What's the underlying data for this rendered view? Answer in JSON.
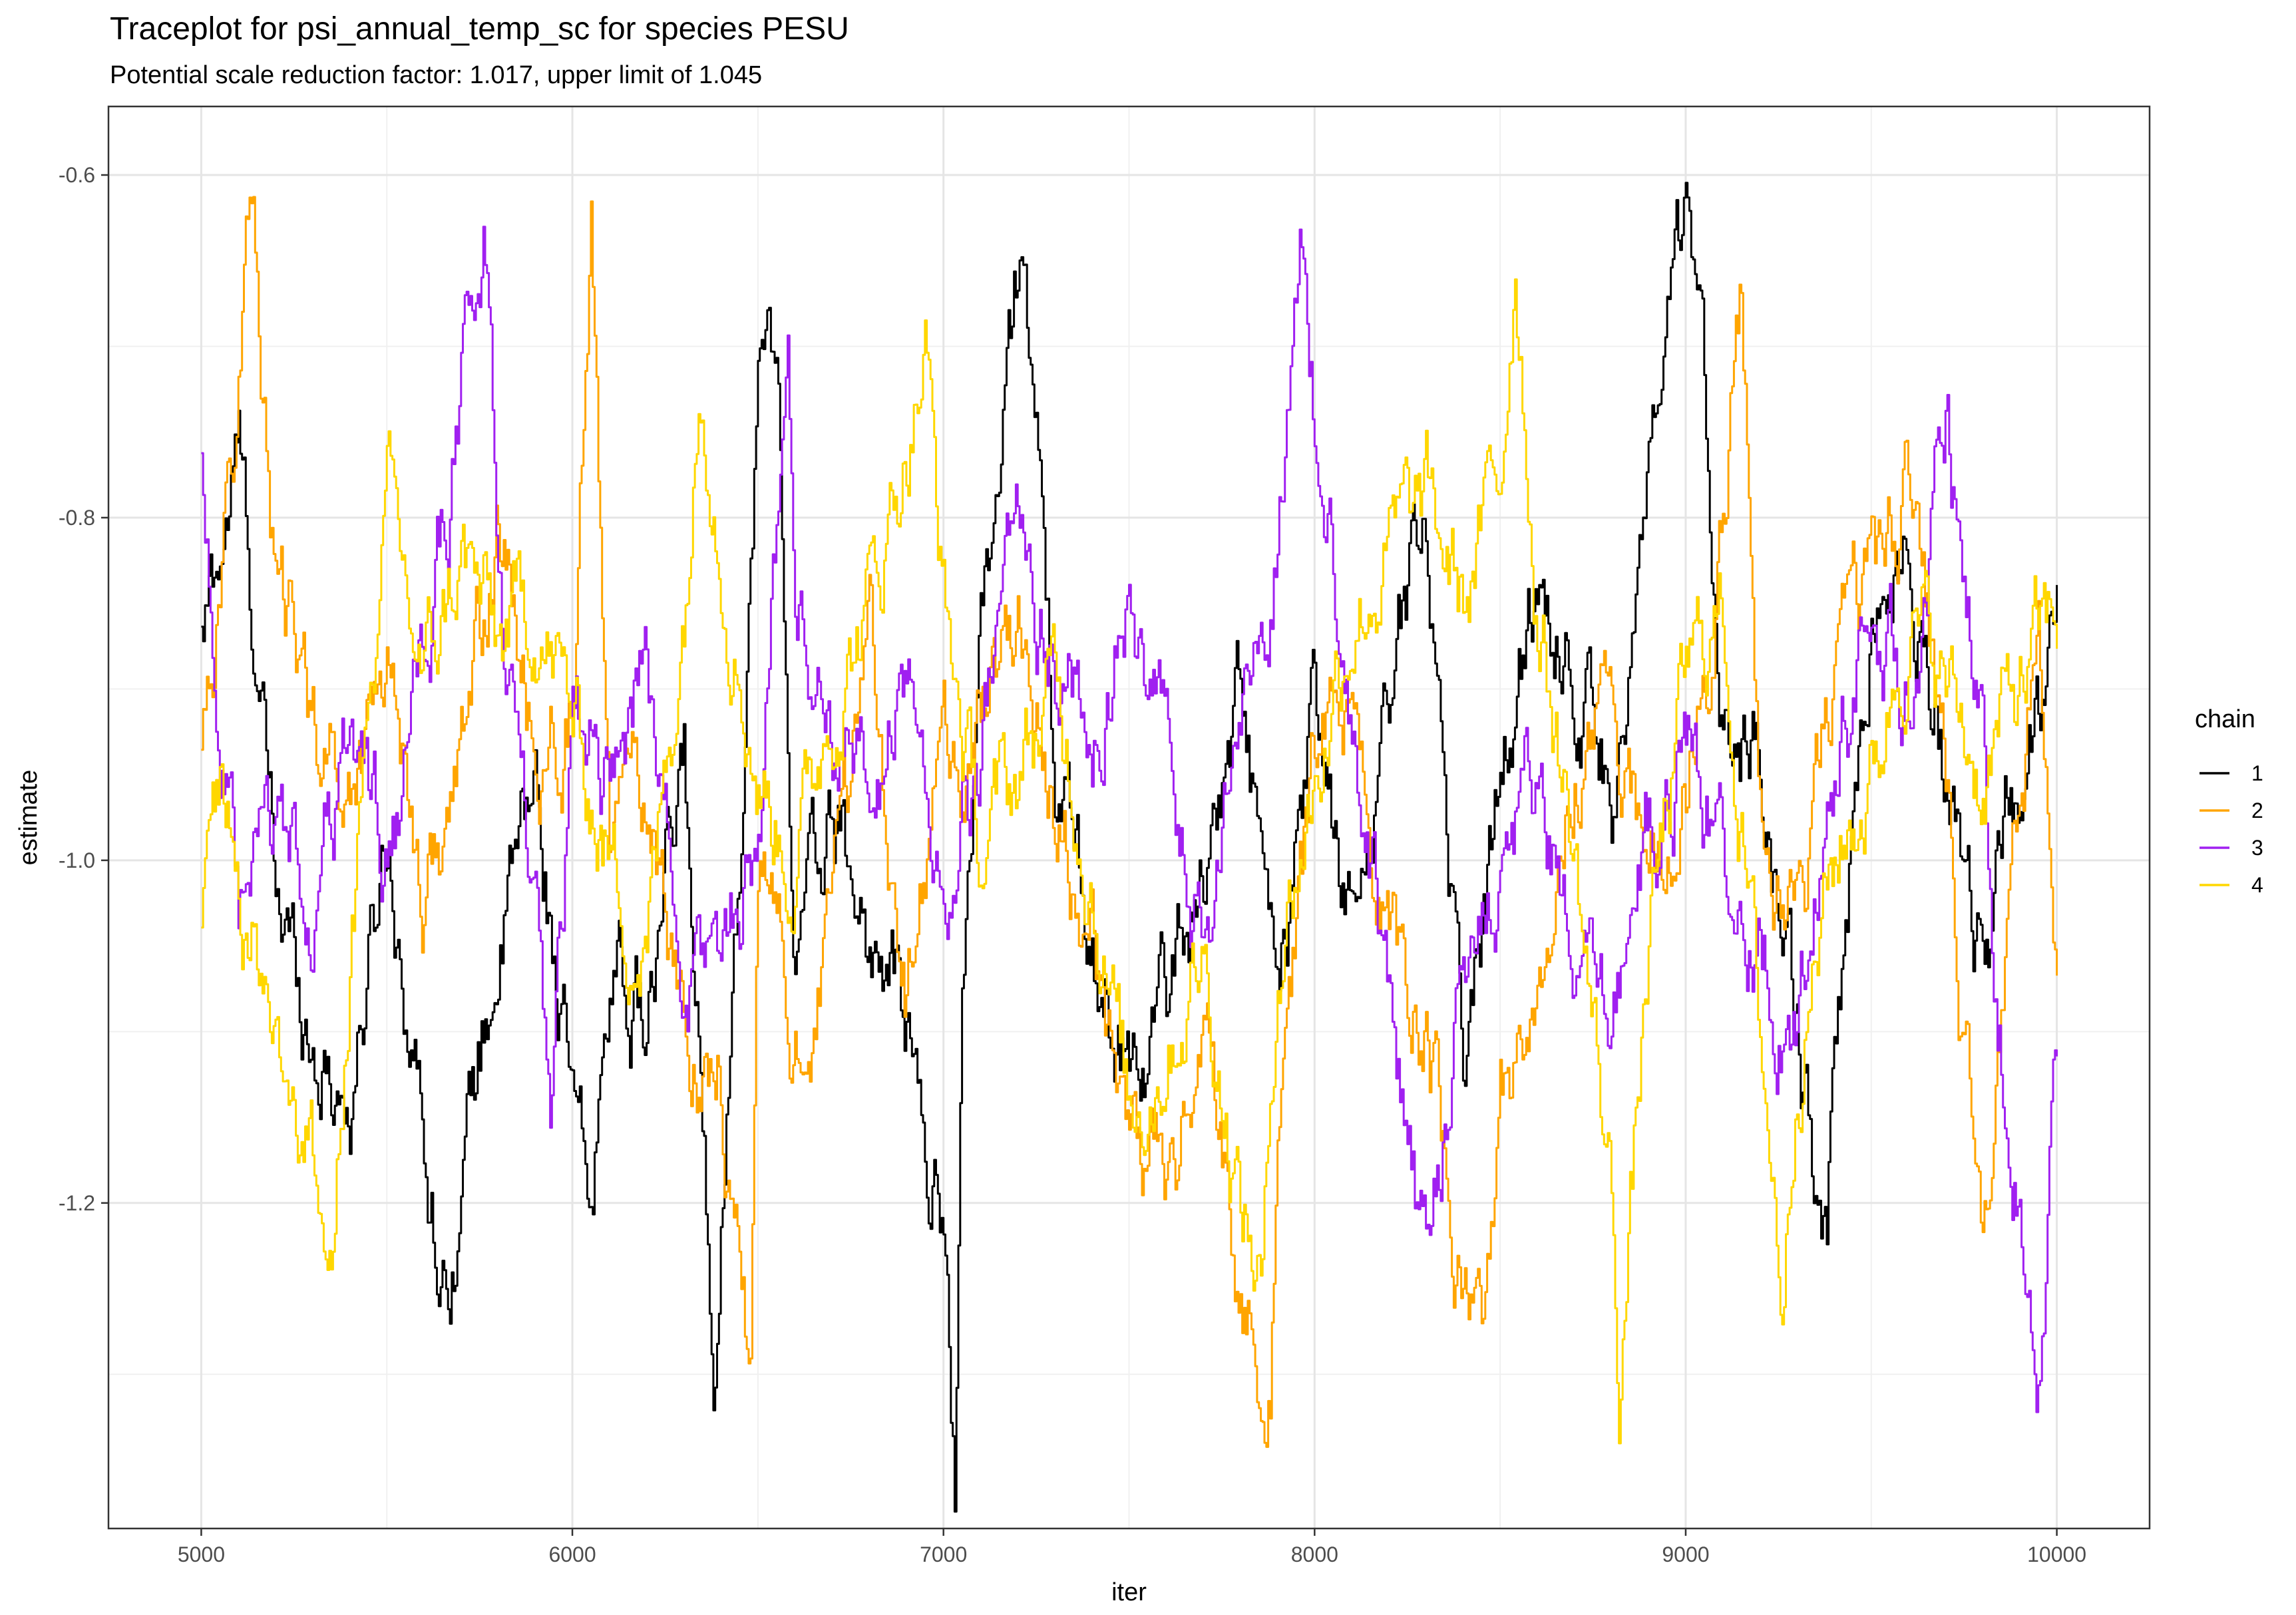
{
  "chart_data": {
    "type": "line",
    "title": "Traceplot for psi_annual_temp_sc for species PESU",
    "subtitle": "Potential scale reduction factor: 1.017, upper limit of 1.045",
    "xlabel": "iter",
    "ylabel": "estimate",
    "xlim": [
      4750,
      10250
    ],
    "ylim": [
      -1.39,
      -0.56
    ],
    "x_ticks": [
      5000,
      6000,
      7000,
      8000,
      9000,
      10000
    ],
    "x_tick_labels": [
      "5000",
      "6000",
      "7000",
      "8000",
      "9000",
      "10000"
    ],
    "y_ticks": [
      -1.2,
      -1.0,
      -0.8,
      -0.6
    ],
    "y_tick_labels": [
      "-1.2",
      "-1.0",
      "-0.8",
      "-0.6"
    ],
    "grid": true,
    "legend": {
      "title": "chain",
      "position": "right"
    },
    "series": [
      {
        "name": "1",
        "color": "#000000",
        "x": [
          5000,
          5100,
          5200,
          5300,
          5400,
          5500,
          5600,
          5650,
          5700,
          5800,
          5900,
          6000,
          6050,
          6100,
          6200,
          6300,
          6380,
          6450,
          6500,
          6550,
          6600,
          6700,
          6800,
          6900,
          6950,
          7000,
          7030,
          7050,
          7100,
          7150,
          7200,
          7220,
          7300,
          7400,
          7500,
          7600,
          7700,
          7800,
          7900,
          8000,
          8100,
          8200,
          8300,
          8400,
          8500,
          8600,
          8700,
          8800,
          8900,
          8980,
          9000,
          9050,
          9100,
          9200,
          9300,
          9380,
          9400,
          9500,
          9600,
          9700,
          9800,
          9900,
          10000
        ],
        "values": [
          -0.88,
          -0.76,
          -1.02,
          -1.1,
          -1.14,
          -0.98,
          -1.16,
          -1.24,
          -1.18,
          -1.05,
          -0.96,
          -1.15,
          -1.22,
          -1.05,
          -1.1,
          -0.95,
          -1.28,
          -0.98,
          -0.72,
          -0.7,
          -1.05,
          -0.98,
          -1.05,
          -1.1,
          -1.18,
          -1.2,
          -1.35,
          -1.1,
          -0.85,
          -0.78,
          -0.66,
          -0.63,
          -0.95,
          -1.05,
          -1.12,
          -1.08,
          -1.0,
          -0.9,
          -1.1,
          -0.92,
          -1.05,
          -0.9,
          -0.79,
          -1.12,
          -0.95,
          -0.84,
          -0.88,
          -0.95,
          -0.8,
          -0.67,
          -0.64,
          -0.75,
          -0.9,
          -0.95,
          -1.12,
          -1.25,
          -1.1,
          -0.85,
          -0.82,
          -0.95,
          -1.05,
          -0.95,
          -0.87
        ]
      },
      {
        "name": "2",
        "color": "#ffa500",
        "x": [
          5000,
          5080,
          5130,
          5200,
          5300,
          5400,
          5500,
          5600,
          5700,
          5800,
          5900,
          6000,
          6050,
          6100,
          6200,
          6300,
          6400,
          6480,
          6500,
          6600,
          6700,
          6800,
          6900,
          7000,
          7100,
          7200,
          7300,
          7400,
          7500,
          7600,
          7700,
          7800,
          7880,
          7900,
          8000,
          8100,
          8200,
          8300,
          8400,
          8450,
          8500,
          8600,
          8700,
          8800,
          8900,
          9000,
          9100,
          9150,
          9200,
          9300,
          9400,
          9500,
          9600,
          9700,
          9750,
          9800,
          9900,
          9950,
          10000
        ],
        "values": [
          -0.92,
          -0.78,
          -0.6,
          -0.85,
          -0.92,
          -0.96,
          -0.87,
          -1.02,
          -0.95,
          -0.8,
          -0.95,
          -0.9,
          -0.64,
          -1.0,
          -0.95,
          -1.1,
          -1.12,
          -1.3,
          -1.02,
          -1.1,
          -1.05,
          -0.85,
          -1.08,
          -0.95,
          -0.92,
          -0.86,
          -0.98,
          -1.05,
          -1.15,
          -1.2,
          -1.1,
          -1.25,
          -1.3,
          -1.15,
          -0.95,
          -0.9,
          -1.05,
          -1.1,
          -1.25,
          -1.3,
          -1.15,
          -1.05,
          -0.95,
          -0.9,
          -1.0,
          -0.95,
          -0.8,
          -0.67,
          -0.95,
          -1.05,
          -0.9,
          -0.85,
          -0.78,
          -0.95,
          -1.12,
          -1.2,
          -0.95,
          -0.9,
          -1.05
        ]
      },
      {
        "name": "3",
        "color": "#a020f0",
        "x": [
          5000,
          5050,
          5100,
          5200,
          5300,
          5400,
          5500,
          5600,
          5700,
          5760,
          5800,
          5900,
          5940,
          6000,
          6100,
          6200,
          6300,
          6400,
          6500,
          6580,
          6600,
          6700,
          6800,
          6900,
          7000,
          7100,
          7200,
          7300,
          7400,
          7500,
          7600,
          7700,
          7800,
          7900,
          7960,
          8000,
          8100,
          8200,
          8250,
          8300,
          8400,
          8500,
          8600,
          8700,
          8800,
          8900,
          9000,
          9100,
          9200,
          9300,
          9400,
          9500,
          9600,
          9650,
          9700,
          9800,
          9830,
          9900,
          9950,
          10000
        ],
        "values": [
          -0.76,
          -0.92,
          -1.05,
          -0.98,
          -1.02,
          -0.93,
          -1.0,
          -0.9,
          -0.72,
          -0.64,
          -0.82,
          -1.05,
          -1.2,
          -0.92,
          -0.95,
          -0.88,
          -1.08,
          -1.05,
          -0.98,
          -0.7,
          -0.85,
          -0.92,
          -0.98,
          -0.88,
          -1.02,
          -0.95,
          -0.8,
          -0.88,
          -0.92,
          -0.85,
          -0.95,
          -1.05,
          -0.92,
          -0.8,
          -0.62,
          -0.75,
          -0.9,
          -1.08,
          -1.18,
          -1.25,
          -1.05,
          -1.0,
          -0.95,
          -1.08,
          -1.1,
          -0.98,
          -0.92,
          -1.0,
          -1.05,
          -1.1,
          -0.95,
          -0.85,
          -0.9,
          -0.82,
          -0.75,
          -0.95,
          -1.12,
          -1.18,
          -1.28,
          -1.1
        ]
      },
      {
        "name": "4",
        "color": "#ffd700",
        "x": [
          5000,
          5050,
          5100,
          5200,
          5280,
          5350,
          5400,
          5500,
          5600,
          5700,
          5800,
          5900,
          6000,
          6100,
          6200,
          6300,
          6350,
          6400,
          6500,
          6600,
          6700,
          6800,
          6900,
          6950,
          7000,
          7100,
          7200,
          7300,
          7400,
          7500,
          7600,
          7700,
          7800,
          7860,
          7900,
          8000,
          8100,
          8200,
          8300,
          8400,
          8500,
          8540,
          8600,
          8700,
          8800,
          8820,
          8900,
          9000,
          9100,
          9200,
          9260,
          9300,
          9400,
          9500,
          9600,
          9700,
          9800,
          9900,
          10000
        ],
        "values": [
          -1.05,
          -0.95,
          -1.0,
          -1.1,
          -1.15,
          -1.25,
          -1.05,
          -0.8,
          -0.9,
          -0.82,
          -0.88,
          -0.85,
          -0.92,
          -1.0,
          -1.05,
          -0.85,
          -0.7,
          -0.8,
          -0.95,
          -1.0,
          -0.9,
          -0.85,
          -0.75,
          -0.7,
          -0.85,
          -1.0,
          -0.95,
          -0.9,
          -1.0,
          -1.15,
          -1.1,
          -1.05,
          -1.2,
          -1.25,
          -1.05,
          -0.95,
          -0.85,
          -0.82,
          -0.8,
          -0.85,
          -0.78,
          -0.64,
          -0.85,
          -1.0,
          -1.2,
          -1.3,
          -1.05,
          -0.9,
          -0.85,
          -1.1,
          -1.25,
          -1.1,
          -1.0,
          -0.95,
          -0.85,
          -0.9,
          -0.95,
          -0.9,
          -0.86
        ]
      }
    ]
  }
}
